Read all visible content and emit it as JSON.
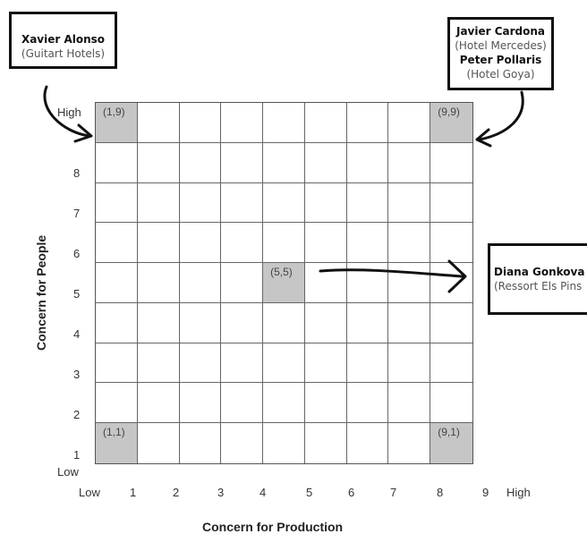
{
  "grid": {
    "cells": [
      {
        "col": 1,
        "row": 9,
        "label": "(1,9)"
      },
      {
        "col": 9,
        "row": 9,
        "label": "(9,9)"
      },
      {
        "col": 5,
        "row": 5,
        "label": "(5,5)"
      },
      {
        "col": 1,
        "row": 1,
        "label": "(1,1)"
      },
      {
        "col": 9,
        "row": 1,
        "label": "(9,1)"
      }
    ]
  },
  "y_axis": {
    "title": "Concern for People",
    "high": "High",
    "low": "Low",
    "ticks": [
      "8",
      "7",
      "6",
      "5",
      "4",
      "3",
      "2",
      "1"
    ]
  },
  "x_axis": {
    "title": "Concern for Production",
    "low": "Low",
    "high": "High",
    "ticks": [
      "1",
      "2",
      "3",
      "4",
      "5",
      "6",
      "7",
      "8",
      "9"
    ]
  },
  "callouts": {
    "alonso": {
      "name": "Xavier Alonso",
      "org": "(Guitart Hotels)"
    },
    "cardona": {
      "name": "Javier Cardona",
      "org": "(Hotel Mercedes)"
    },
    "pollaris": {
      "name": "Peter Pollaris",
      "org": "(Hotel Goya)"
    },
    "gonkova": {
      "name": "Diana Gonkova",
      "org": "(Ressort Els Pins"
    }
  }
}
